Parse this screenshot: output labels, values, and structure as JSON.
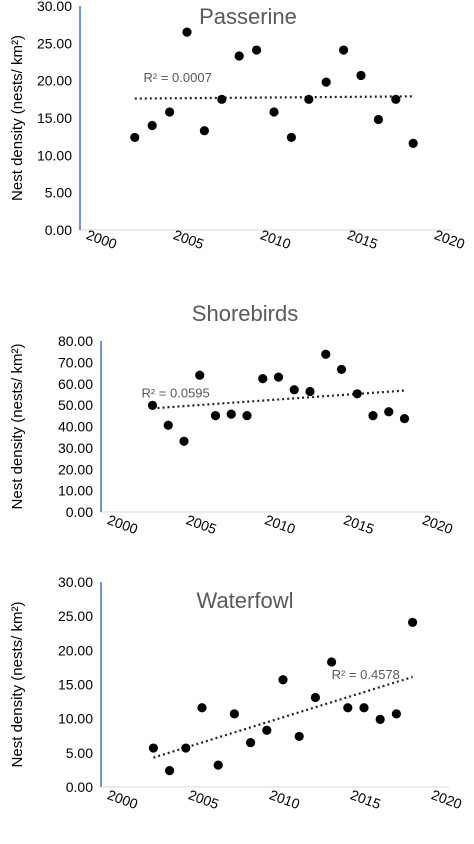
{
  "chart_data": [
    {
      "type": "scatter",
      "title": "Passerine",
      "xlabel": "",
      "ylabel": "Nest density (nests/ km²)",
      "xlim": [
        2000,
        2020
      ],
      "ylim": [
        0,
        30
      ],
      "x_ticks": [
        "2000",
        "2005",
        "2010",
        "2015",
        "2020"
      ],
      "y_ticks": [
        "0.00",
        "5.00",
        "10.00",
        "15.00",
        "20.00",
        "25.00",
        "30.00"
      ],
      "points": [
        {
          "x": 2002,
          "y": 12.4
        },
        {
          "x": 2003,
          "y": 14.0
        },
        {
          "x": 2004,
          "y": 15.8
        },
        {
          "x": 2005,
          "y": 26.5
        },
        {
          "x": 2006,
          "y": 13.3
        },
        {
          "x": 2007,
          "y": 17.5
        },
        {
          "x": 2008,
          "y": 23.3
        },
        {
          "x": 2009,
          "y": 24.1
        },
        {
          "x": 2010,
          "y": 15.8
        },
        {
          "x": 2011,
          "y": 12.4
        },
        {
          "x": 2012,
          "y": 17.5
        },
        {
          "x": 2013,
          "y": 19.8
        },
        {
          "x": 2014,
          "y": 24.1
        },
        {
          "x": 2015,
          "y": 20.7
        },
        {
          "x": 2016,
          "y": 14.8
        },
        {
          "x": 2017,
          "y": 17.5
        },
        {
          "x": 2018,
          "y": 11.6
        }
      ],
      "trendline": {
        "x": [
          2002,
          2018
        ],
        "y": [
          17.6,
          17.9
        ],
        "label": "R² = 0.0007",
        "label_x": 2002.5,
        "label_y": 19.8
      }
    },
    {
      "type": "scatter",
      "title": "Shorebirds",
      "xlabel": "",
      "ylabel": "Nest density (nests/ km²)",
      "xlim": [
        2000,
        2020
      ],
      "ylim": [
        0,
        80
      ],
      "x_ticks": [
        "2000",
        "2005",
        "2010",
        "2015",
        "2020"
      ],
      "y_ticks": [
        "0.00",
        "10.00",
        "20.00",
        "30.00",
        "40.00",
        "50.00",
        "60.00",
        "70.00",
        "80.00"
      ],
      "points": [
        {
          "x": 2002,
          "y": 49.9
        },
        {
          "x": 2003,
          "y": 40.6
        },
        {
          "x": 2004,
          "y": 33.1
        },
        {
          "x": 2005,
          "y": 64.0
        },
        {
          "x": 2006,
          "y": 45.1
        },
        {
          "x": 2007,
          "y": 45.8
        },
        {
          "x": 2008,
          "y": 45.1
        },
        {
          "x": 2009,
          "y": 62.4
        },
        {
          "x": 2010,
          "y": 63.1
        },
        {
          "x": 2011,
          "y": 57.2
        },
        {
          "x": 2012,
          "y": 56.4
        },
        {
          "x": 2013,
          "y": 73.8
        },
        {
          "x": 2014,
          "y": 66.7
        },
        {
          "x": 2015,
          "y": 55.3
        },
        {
          "x": 2016,
          "y": 45.1
        },
        {
          "x": 2017,
          "y": 46.9
        },
        {
          "x": 2018,
          "y": 43.7
        }
      ],
      "trendline": {
        "x": [
          2002,
          2018
        ],
        "y": [
          48.5,
          56.8
        ],
        "label": "R² = 0.0595",
        "label_x": 2001.3,
        "label_y": 53.5
      }
    },
    {
      "type": "scatter",
      "title": "Waterfowl",
      "xlabel": "",
      "ylabel": "Nest density (nests/ km²)",
      "xlim": [
        2000,
        2020
      ],
      "ylim": [
        0,
        30
      ],
      "x_ticks": [
        "2000",
        "2005",
        "2010",
        "2015",
        "2020"
      ],
      "y_ticks": [
        "0.00",
        "5.00",
        "10.00",
        "15.00",
        "20.00",
        "25.00",
        "30.00"
      ],
      "points": [
        {
          "x": 2002,
          "y": 5.7
        },
        {
          "x": 2003,
          "y": 2.4
        },
        {
          "x": 2004,
          "y": 5.7
        },
        {
          "x": 2005,
          "y": 11.6
        },
        {
          "x": 2006,
          "y": 3.2
        },
        {
          "x": 2007,
          "y": 10.7
        },
        {
          "x": 2008,
          "y": 6.5
        },
        {
          "x": 2009,
          "y": 8.3
        },
        {
          "x": 2010,
          "y": 15.7
        },
        {
          "x": 2011,
          "y": 7.4
        },
        {
          "x": 2012,
          "y": 13.1
        },
        {
          "x": 2013,
          "y": 18.3
        },
        {
          "x": 2014,
          "y": 11.6
        },
        {
          "x": 2015,
          "y": 11.6
        },
        {
          "x": 2016,
          "y": 9.9
        },
        {
          "x": 2017,
          "y": 10.7
        },
        {
          "x": 2018,
          "y": 24.1
        }
      ],
      "trendline": {
        "x": [
          2002,
          2018
        ],
        "y": [
          4.3,
          16.1
        ],
        "label": "R² = 0.4578",
        "label_x": 2013.0,
        "label_y": 15.8
      }
    }
  ],
  "colors": {
    "marker": "#000000",
    "trendline": "#222222",
    "axis_y": "#4472c4",
    "axis_x": "#d9d9d9",
    "title": "#595959",
    "tick_label": "#000000",
    "r2_label": "#595959"
  }
}
